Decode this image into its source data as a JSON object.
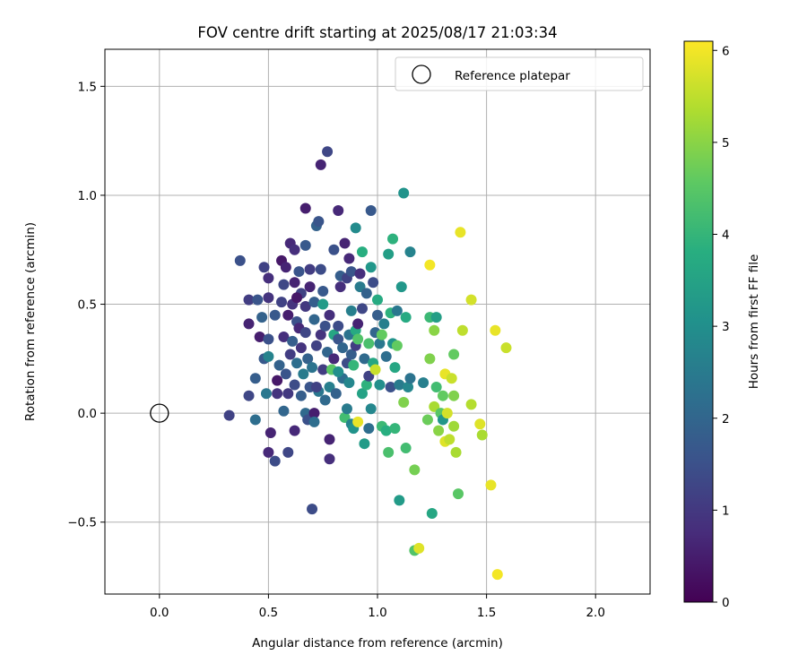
{
  "chart_data": {
    "type": "scatter",
    "title": "FOV centre drift starting at 2025/08/17 21:03:34",
    "xlabel": "Angular distance from reference (arcmin)",
    "ylabel": "Rotation from reference (arcmin)",
    "xlim": [
      -0.25,
      2.25
    ],
    "ylim": [
      -0.83,
      1.67
    ],
    "xticks": [
      "0.0",
      "0.5",
      "1.0",
      "1.5",
      "2.0"
    ],
    "xtick_values": [
      0,
      0.5,
      1.0,
      1.5,
      2.0
    ],
    "yticks": [
      "−0.5",
      "0.0",
      "0.5",
      "1.0",
      "1.5"
    ],
    "ytick_values": [
      -0.5,
      0,
      0.5,
      1.0,
      1.5
    ],
    "grid": true,
    "legend": {
      "placement": "top-right",
      "label": "Reference platepar"
    },
    "reference_point": {
      "x": 0.0,
      "y": 0.0
    },
    "colorbar": {
      "label": "Hours from first FF file",
      "range": [
        0,
        6.1
      ],
      "ticks": [
        "0",
        "1",
        "2",
        "3",
        "4",
        "5",
        "6"
      ],
      "tick_values": [
        0,
        1,
        2,
        3,
        4,
        5,
        6
      ],
      "colormap": "viridis"
    },
    "points": [
      {
        "x": 0.32,
        "y": -0.01,
        "c": 1.2
      },
      {
        "x": 0.37,
        "y": 0.7,
        "c": 1.5
      },
      {
        "x": 0.41,
        "y": 0.52,
        "c": 1.1
      },
      {
        "x": 0.41,
        "y": 0.41,
        "c": 0.6
      },
      {
        "x": 0.41,
        "y": 0.08,
        "c": 1.3
      },
      {
        "x": 0.44,
        "y": -0.03,
        "c": 2.2
      },
      {
        "x": 0.44,
        "y": 0.16,
        "c": 1.8
      },
      {
        "x": 0.45,
        "y": 0.52,
        "c": 1.6
      },
      {
        "x": 0.46,
        "y": 0.35,
        "c": 0.5
      },
      {
        "x": 0.47,
        "y": 0.44,
        "c": 1.9
      },
      {
        "x": 0.48,
        "y": 0.67,
        "c": 1.2
      },
      {
        "x": 0.49,
        "y": 0.09,
        "c": 2.4
      },
      {
        "x": 0.48,
        "y": 0.25,
        "c": 1.7
      },
      {
        "x": 0.5,
        "y": 0.62,
        "c": 0.8
      },
      {
        "x": 0.5,
        "y": 0.53,
        "c": 0.9
      },
      {
        "x": 0.5,
        "y": 0.34,
        "c": 1.5
      },
      {
        "x": 0.5,
        "y": 0.26,
        "c": 2.7
      },
      {
        "x": 0.5,
        "y": -0.18,
        "c": 0.7
      },
      {
        "x": 0.51,
        "y": -0.09,
        "c": 0.6
      },
      {
        "x": 0.53,
        "y": -0.22,
        "c": 1.4
      },
      {
        "x": 0.54,
        "y": 0.15,
        "c": 0.4
      },
      {
        "x": 0.54,
        "y": 0.09,
        "c": 0.9
      },
      {
        "x": 0.55,
        "y": 0.22,
        "c": 1.9
      },
      {
        "x": 0.56,
        "y": 0.51,
        "c": 1.2
      },
      {
        "x": 0.56,
        "y": 0.7,
        "c": 0.4
      },
      {
        "x": 0.57,
        "y": 0.59,
        "c": 1.3
      },
      {
        "x": 0.57,
        "y": 0.35,
        "c": 0.8
      },
      {
        "x": 0.57,
        "y": 0.01,
        "c": 2.0
      },
      {
        "x": 0.58,
        "y": 0.67,
        "c": 0.6
      },
      {
        "x": 0.58,
        "y": 0.18,
        "c": 1.6
      },
      {
        "x": 0.59,
        "y": 0.45,
        "c": 0.5
      },
      {
        "x": 0.59,
        "y": -0.18,
        "c": 1.3
      },
      {
        "x": 0.6,
        "y": 0.78,
        "c": 0.7
      },
      {
        "x": 0.6,
        "y": 0.27,
        "c": 1.1
      },
      {
        "x": 0.61,
        "y": 0.33,
        "c": 1.8
      },
      {
        "x": 0.61,
        "y": 0.5,
        "c": 0.9
      },
      {
        "x": 0.62,
        "y": 0.75,
        "c": 0.8
      },
      {
        "x": 0.62,
        "y": 0.6,
        "c": 0.6
      },
      {
        "x": 0.62,
        "y": 0.13,
        "c": 1.4
      },
      {
        "x": 0.62,
        "y": -0.08,
        "c": 0.7
      },
      {
        "x": 0.63,
        "y": 0.42,
        "c": 1.5
      },
      {
        "x": 0.63,
        "y": 0.23,
        "c": 2.2
      },
      {
        "x": 0.64,
        "y": 0.65,
        "c": 1.6
      },
      {
        "x": 0.64,
        "y": 0.39,
        "c": 0.7
      },
      {
        "x": 0.65,
        "y": 0.55,
        "c": 1.2
      },
      {
        "x": 0.65,
        "y": 0.3,
        "c": 0.9
      },
      {
        "x": 0.65,
        "y": 0.08,
        "c": 1.8
      },
      {
        "x": 0.66,
        "y": 0.18,
        "c": 2.5
      },
      {
        "x": 0.67,
        "y": 0.77,
        "c": 1.7
      },
      {
        "x": 0.67,
        "y": 0.94,
        "c": 0.5
      },
      {
        "x": 0.67,
        "y": 0.49,
        "c": 1.0
      },
      {
        "x": 0.67,
        "y": 0.37,
        "c": 1.3
      },
      {
        "x": 0.67,
        "y": 0.0,
        "c": 2.1
      },
      {
        "x": 0.68,
        "y": -0.03,
        "c": 1.5
      },
      {
        "x": 0.68,
        "y": 0.25,
        "c": 1.9
      },
      {
        "x": 0.69,
        "y": 0.66,
        "c": 1.1
      },
      {
        "x": 0.69,
        "y": 0.58,
        "c": 0.6
      },
      {
        "x": 0.69,
        "y": 0.12,
        "c": 1.6
      },
      {
        "x": 0.7,
        "y": 0.21,
        "c": 2.3
      },
      {
        "x": 0.7,
        "y": -0.44,
        "c": 1.4
      },
      {
        "x": 0.71,
        "y": 0.43,
        "c": 2.0
      },
      {
        "x": 0.71,
        "y": 0.51,
        "c": 1.8
      },
      {
        "x": 0.71,
        "y": 0.0,
        "c": 0.5
      },
      {
        "x": 0.71,
        "y": -0.04,
        "c": 2.2
      },
      {
        "x": 0.72,
        "y": 0.86,
        "c": 1.9
      },
      {
        "x": 0.72,
        "y": 0.31,
        "c": 1.2
      },
      {
        "x": 0.73,
        "y": 0.88,
        "c": 1.6
      },
      {
        "x": 0.73,
        "y": 0.1,
        "c": 2.4
      },
      {
        "x": 0.74,
        "y": 1.14,
        "c": 0.6
      },
      {
        "x": 0.74,
        "y": 0.36,
        "c": 0.9
      },
      {
        "x": 0.74,
        "y": 0.66,
        "c": 1.4
      },
      {
        "x": 0.75,
        "y": 0.56,
        "c": 1.7
      },
      {
        "x": 0.75,
        "y": 0.5,
        "c": 3.3
      },
      {
        "x": 0.75,
        "y": 0.2,
        "c": 1.1
      },
      {
        "x": 0.76,
        "y": 0.4,
        "c": 1.5
      },
      {
        "x": 0.77,
        "y": 1.2,
        "c": 1.3
      },
      {
        "x": 0.77,
        "y": 0.28,
        "c": 2.0
      },
      {
        "x": 0.78,
        "y": 0.45,
        "c": 0.8
      },
      {
        "x": 0.78,
        "y": 0.12,
        "c": 2.6
      },
      {
        "x": 0.78,
        "y": -0.12,
        "c": 0.6
      },
      {
        "x": 0.78,
        "y": -0.21,
        "c": 0.8
      },
      {
        "x": 0.79,
        "y": 0.2,
        "c": 4.5
      },
      {
        "x": 0.8,
        "y": 0.75,
        "c": 1.5
      },
      {
        "x": 0.8,
        "y": 0.36,
        "c": 3.6
      },
      {
        "x": 0.8,
        "y": 0.25,
        "c": 0.7
      },
      {
        "x": 0.81,
        "y": 0.09,
        "c": 1.9
      },
      {
        "x": 0.82,
        "y": 0.93,
        "c": 0.7
      },
      {
        "x": 0.82,
        "y": 0.4,
        "c": 1.4
      },
      {
        "x": 0.82,
        "y": 0.34,
        "c": 1.6
      },
      {
        "x": 0.83,
        "y": 0.63,
        "c": 1.8
      },
      {
        "x": 0.83,
        "y": 0.58,
        "c": 0.8
      },
      {
        "x": 0.84,
        "y": 0.3,
        "c": 2.0
      },
      {
        "x": 0.84,
        "y": 0.16,
        "c": 2.2
      },
      {
        "x": 0.85,
        "y": 0.78,
        "c": 0.6
      },
      {
        "x": 0.85,
        "y": -0.02,
        "c": 4.2
      },
      {
        "x": 0.86,
        "y": 0.62,
        "c": 1.2
      },
      {
        "x": 0.86,
        "y": 0.23,
        "c": 1.4
      },
      {
        "x": 0.86,
        "y": 0.02,
        "c": 2.5
      },
      {
        "x": 0.87,
        "y": 0.14,
        "c": 2.8
      },
      {
        "x": 0.87,
        "y": 0.71,
        "c": 0.7
      },
      {
        "x": 0.87,
        "y": 0.36,
        "c": 2.3
      },
      {
        "x": 0.88,
        "y": 0.65,
        "c": 1.6
      },
      {
        "x": 0.88,
        "y": 0.27,
        "c": 1.8
      },
      {
        "x": 0.88,
        "y": -0.05,
        "c": 2.7
      },
      {
        "x": 0.89,
        "y": -0.07,
        "c": 3.1
      },
      {
        "x": 0.89,
        "y": 0.22,
        "c": 4.0
      },
      {
        "x": 0.9,
        "y": 0.38,
        "c": 3.7
      },
      {
        "x": 0.9,
        "y": 0.31,
        "c": 1.1
      },
      {
        "x": 0.9,
        "y": 0.85,
        "c": 2.9
      },
      {
        "x": 0.91,
        "y": 0.41,
        "c": 0.6
      },
      {
        "x": 0.91,
        "y": -0.04,
        "c": 5.9
      },
      {
        "x": 0.91,
        "y": 0.34,
        "c": 4.4
      },
      {
        "x": 0.92,
        "y": 0.64,
        "c": 0.8
      },
      {
        "x": 0.92,
        "y": 0.58,
        "c": 2.5
      },
      {
        "x": 0.93,
        "y": 0.74,
        "c": 3.8
      },
      {
        "x": 0.93,
        "y": 0.09,
        "c": 3.5
      },
      {
        "x": 0.94,
        "y": 0.25,
        "c": 2.1
      },
      {
        "x": 0.94,
        "y": -0.14,
        "c": 3.3
      },
      {
        "x": 0.95,
        "y": 0.13,
        "c": 3.9
      },
      {
        "x": 0.95,
        "y": 0.55,
        "c": 1.9
      },
      {
        "x": 0.96,
        "y": 0.32,
        "c": 4.3
      },
      {
        "x": 0.96,
        "y": 0.17,
        "c": 1.2
      },
      {
        "x": 0.97,
        "y": 0.93,
        "c": 1.7
      },
      {
        "x": 0.97,
        "y": 0.67,
        "c": 3.2
      },
      {
        "x": 0.97,
        "y": 0.02,
        "c": 2.8
      },
      {
        "x": 0.98,
        "y": 0.23,
        "c": 3.6
      },
      {
        "x": 0.98,
        "y": 0.6,
        "c": 1.4
      },
      {
        "x": 0.99,
        "y": 0.37,
        "c": 2.0
      },
      {
        "x": 0.99,
        "y": 0.2,
        "c": 5.6
      },
      {
        "x": 1.0,
        "y": 0.52,
        "c": 3.7
      },
      {
        "x": 1.0,
        "y": 0.45,
        "c": 1.8
      },
      {
        "x": 1.01,
        "y": 0.32,
        "c": 2.4
      },
      {
        "x": 1.01,
        "y": 0.13,
        "c": 3.0
      },
      {
        "x": 1.02,
        "y": -0.06,
        "c": 4.1
      },
      {
        "x": 1.02,
        "y": 0.36,
        "c": 4.6
      },
      {
        "x": 1.03,
        "y": 0.41,
        "c": 2.6
      },
      {
        "x": 1.04,
        "y": 0.26,
        "c": 2.2
      },
      {
        "x": 1.04,
        "y": -0.08,
        "c": 3.8
      },
      {
        "x": 1.05,
        "y": 0.73,
        "c": 3.4
      },
      {
        "x": 1.05,
        "y": -0.18,
        "c": 4.3
      },
      {
        "x": 1.06,
        "y": 0.46,
        "c": 3.9
      },
      {
        "x": 1.06,
        "y": 0.12,
        "c": 1.5
      },
      {
        "x": 1.07,
        "y": 0.32,
        "c": 3.1
      },
      {
        "x": 1.07,
        "y": 0.8,
        "c": 3.9
      },
      {
        "x": 1.08,
        "y": -0.07,
        "c": 4.0
      },
      {
        "x": 1.08,
        "y": 0.21,
        "c": 3.6
      },
      {
        "x": 1.09,
        "y": 0.31,
        "c": 4.6
      },
      {
        "x": 1.1,
        "y": 0.13,
        "c": 2.5
      },
      {
        "x": 1.1,
        "y": -0.4,
        "c": 3.3
      },
      {
        "x": 1.11,
        "y": 0.58,
        "c": 3.2
      },
      {
        "x": 1.12,
        "y": 1.01,
        "c": 3.1
      },
      {
        "x": 1.12,
        "y": 0.05,
        "c": 4.9
      },
      {
        "x": 1.13,
        "y": -0.16,
        "c": 4.2
      },
      {
        "x": 1.13,
        "y": 0.44,
        "c": 3.7
      },
      {
        "x": 1.14,
        "y": 0.12,
        "c": 2.8
      },
      {
        "x": 1.15,
        "y": 0.16,
        "c": 2.3
      },
      {
        "x": 1.15,
        "y": 0.74,
        "c": 2.7
      },
      {
        "x": 1.17,
        "y": -0.26,
        "c": 4.8
      },
      {
        "x": 1.17,
        "y": -0.63,
        "c": 4.4
      },
      {
        "x": 1.19,
        "y": -0.62,
        "c": 5.8
      },
      {
        "x": 1.21,
        "y": 0.14,
        "c": 2.6
      },
      {
        "x": 1.23,
        "y": -0.03,
        "c": 4.7
      },
      {
        "x": 1.24,
        "y": 0.25,
        "c": 4.9
      },
      {
        "x": 1.24,
        "y": 0.44,
        "c": 4.1
      },
      {
        "x": 1.24,
        "y": 0.68,
        "c": 6.0
      },
      {
        "x": 1.25,
        "y": -0.46,
        "c": 3.6
      },
      {
        "x": 1.26,
        "y": 0.38,
        "c": 5.0
      },
      {
        "x": 1.26,
        "y": 0.03,
        "c": 5.3
      },
      {
        "x": 1.27,
        "y": 0.44,
        "c": 3.4
      },
      {
        "x": 1.27,
        "y": 0.12,
        "c": 4.2
      },
      {
        "x": 1.28,
        "y": -0.08,
        "c": 5.0
      },
      {
        "x": 1.29,
        "y": 0.0,
        "c": 4.5
      },
      {
        "x": 1.3,
        "y": -0.03,
        "c": 3.2
      },
      {
        "x": 1.3,
        "y": 0.08,
        "c": 4.6
      },
      {
        "x": 1.31,
        "y": -0.13,
        "c": 5.8
      },
      {
        "x": 1.31,
        "y": 0.18,
        "c": 5.9
      },
      {
        "x": 1.32,
        "y": 0.0,
        "c": 5.7
      },
      {
        "x": 1.33,
        "y": -0.12,
        "c": 5.5
      },
      {
        "x": 1.34,
        "y": 0.16,
        "c": 5.6
      },
      {
        "x": 1.35,
        "y": -0.06,
        "c": 5.2
      },
      {
        "x": 1.35,
        "y": 0.27,
        "c": 4.6
      },
      {
        "x": 1.35,
        "y": 0.08,
        "c": 4.9
      },
      {
        "x": 1.36,
        "y": -0.18,
        "c": 5.3
      },
      {
        "x": 1.37,
        "y": -0.37,
        "c": 4.5
      },
      {
        "x": 1.38,
        "y": 0.83,
        "c": 5.9
      },
      {
        "x": 1.39,
        "y": 0.38,
        "c": 5.5
      },
      {
        "x": 1.43,
        "y": 0.52,
        "c": 5.7
      },
      {
        "x": 1.43,
        "y": 0.04,
        "c": 5.4
      },
      {
        "x": 1.47,
        "y": -0.05,
        "c": 5.8
      },
      {
        "x": 1.48,
        "y": -0.1,
        "c": 5.3
      },
      {
        "x": 1.52,
        "y": -0.33,
        "c": 5.9
      },
      {
        "x": 1.54,
        "y": 0.38,
        "c": 5.9
      },
      {
        "x": 1.55,
        "y": -0.74,
        "c": 6.0
      },
      {
        "x": 1.59,
        "y": 0.3,
        "c": 5.6
      },
      {
        "x": 1.09,
        "y": 0.47,
        "c": 2.4
      },
      {
        "x": 0.96,
        "y": -0.07,
        "c": 2.2
      },
      {
        "x": 0.93,
        "y": 0.48,
        "c": 1.3
      },
      {
        "x": 0.76,
        "y": 0.06,
        "c": 2.1
      },
      {
        "x": 0.88,
        "y": 0.47,
        "c": 2.6
      },
      {
        "x": 0.63,
        "y": 0.53,
        "c": 0.4
      },
      {
        "x": 0.59,
        "y": 0.09,
        "c": 1.0
      },
      {
        "x": 0.53,
        "y": 0.45,
        "c": 1.7
      },
      {
        "x": 0.72,
        "y": 0.12,
        "c": 1.2
      },
      {
        "x": 0.82,
        "y": 0.19,
        "c": 3.0
      }
    ]
  }
}
